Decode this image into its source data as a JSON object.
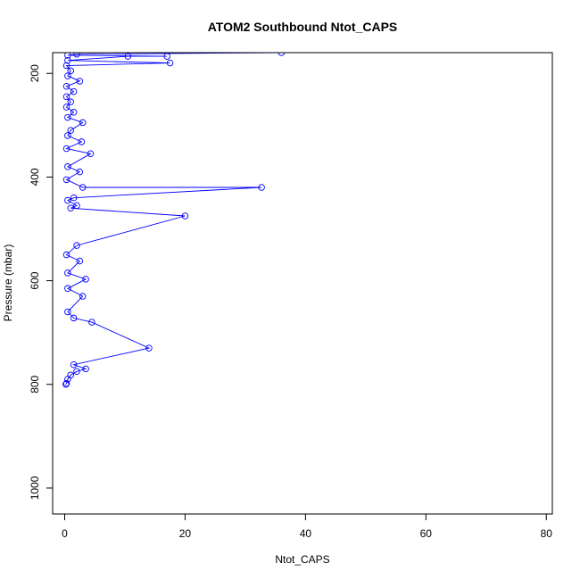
{
  "chart_data": {
    "type": "line",
    "title": "ATOM2 Southbound Ntot_CAPS",
    "xlabel": "Ntot_CAPS",
    "ylabel": "Pressure (mbar)",
    "xlim": [
      -2,
      81
    ],
    "ylim": [
      1050,
      160
    ],
    "y_reversed": true,
    "x_ticks": [
      0,
      20,
      40,
      60,
      80
    ],
    "y_ticks": [
      200,
      400,
      600,
      800,
      1000
    ],
    "grid": false,
    "legend": "none",
    "colors": {
      "series": "#0000ff",
      "axis": "#000000"
    },
    "marker": "open-circle",
    "series": [
      {
        "values": [
          {
            "x": 0.2,
            "y": 800
          },
          {
            "x": 0.3,
            "y": 798
          },
          {
            "x": 0.5,
            "y": 790
          },
          {
            "x": 1.0,
            "y": 782
          },
          {
            "x": 2.0,
            "y": 775
          },
          {
            "x": 3.5,
            "y": 770
          },
          {
            "x": 1.5,
            "y": 762
          },
          {
            "x": 14.0,
            "y": 730
          },
          {
            "x": 4.5,
            "y": 680
          },
          {
            "x": 1.5,
            "y": 672
          },
          {
            "x": 0.5,
            "y": 660
          },
          {
            "x": 3.0,
            "y": 630
          },
          {
            "x": 0.5,
            "y": 615
          },
          {
            "x": 3.5,
            "y": 597
          },
          {
            "x": 0.5,
            "y": 585
          },
          {
            "x": 2.5,
            "y": 562
          },
          {
            "x": 0.3,
            "y": 550
          },
          {
            "x": 2.0,
            "y": 532
          },
          {
            "x": 20.0,
            "y": 475
          },
          {
            "x": 1.0,
            "y": 460
          },
          {
            "x": 2.0,
            "y": 455
          },
          {
            "x": 0.5,
            "y": 445
          },
          {
            "x": 1.5,
            "y": 440
          },
          {
            "x": 32.7,
            "y": 420
          },
          {
            "x": 3.0,
            "y": 420
          },
          {
            "x": 0.3,
            "y": 405
          },
          {
            "x": 2.5,
            "y": 390
          },
          {
            "x": 0.5,
            "y": 380
          },
          {
            "x": 4.3,
            "y": 355
          },
          {
            "x": 0.3,
            "y": 345
          },
          {
            "x": 2.8,
            "y": 332
          },
          {
            "x": 0.5,
            "y": 320
          },
          {
            "x": 1.0,
            "y": 310
          },
          {
            "x": 3.0,
            "y": 295
          },
          {
            "x": 0.5,
            "y": 285
          },
          {
            "x": 1.5,
            "y": 275
          },
          {
            "x": 0.3,
            "y": 265
          },
          {
            "x": 1.0,
            "y": 255
          },
          {
            "x": 0.3,
            "y": 245
          },
          {
            "x": 1.5,
            "y": 235
          },
          {
            "x": 0.3,
            "y": 225
          },
          {
            "x": 2.5,
            "y": 215
          },
          {
            "x": 0.5,
            "y": 205
          },
          {
            "x": 1.0,
            "y": 195
          },
          {
            "x": 0.3,
            "y": 185
          },
          {
            "x": 17.5,
            "y": 180
          },
          {
            "x": 0.5,
            "y": 175
          },
          {
            "x": 10.5,
            "y": 167
          },
          {
            "x": 17.0,
            "y": 167
          },
          {
            "x": 0.5,
            "y": 165
          },
          {
            "x": 2.0,
            "y": 163
          },
          {
            "x": 36.0,
            "y": 160
          }
        ]
      }
    ]
  }
}
